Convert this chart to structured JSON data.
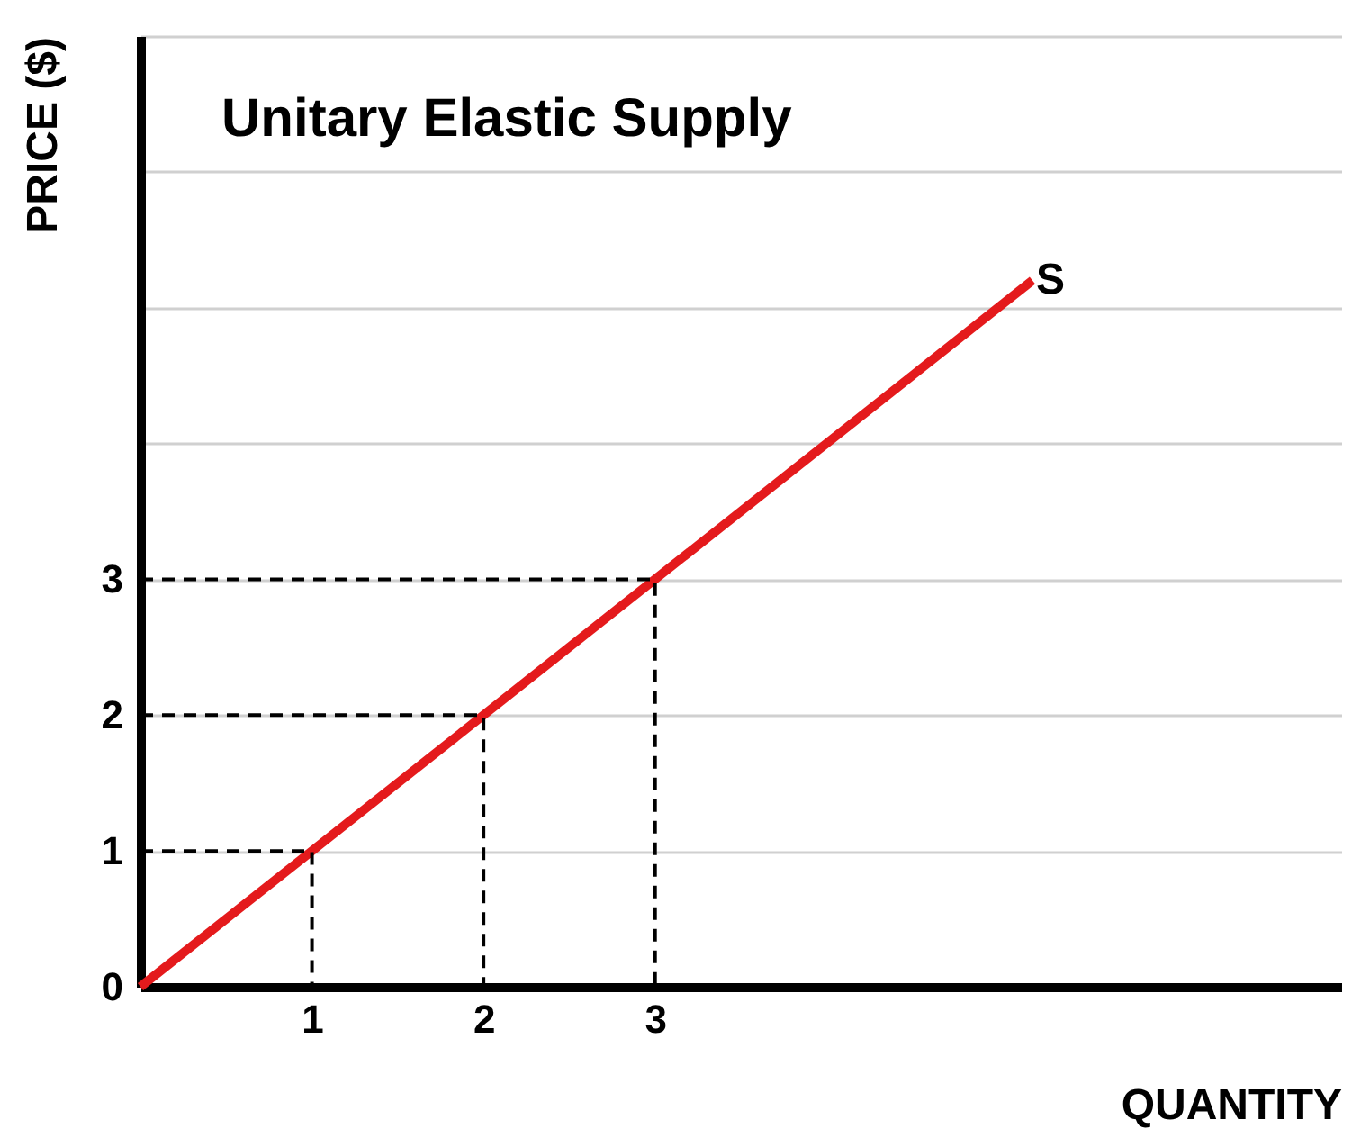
{
  "chart_data": {
    "type": "line",
    "title": "Unitary Elastic Supply",
    "xlabel": "QUANTITY",
    "ylabel": "PRICE ($)",
    "xlim": [
      0,
      7
    ],
    "ylim": [
      0,
      7
    ],
    "xticks": [
      1,
      2,
      3
    ],
    "yticks": [
      0,
      1,
      2,
      3,
      {
        "value": 4,
        "label": null
      },
      {
        "value": 5,
        "label": null
      },
      {
        "value": 6,
        "label": null
      },
      {
        "value": 7,
        "label": null
      }
    ],
    "grid": "y",
    "marker": "none",
    "series": [
      {
        "name": "S",
        "color": "#e41a1c",
        "line_style": "solid",
        "x": [
          0,
          5.2
        ],
        "values": [
          0,
          5.2
        ]
      },
      {
        "color": "#000000",
        "line_style": "dashed",
        "x": [
          0,
          1,
          1
        ],
        "values": [
          1,
          1,
          0
        ]
      },
      {
        "color": "#000000",
        "line_style": "dashed",
        "x": [
          0,
          2,
          2
        ],
        "values": [
          2,
          2,
          0
        ]
      },
      {
        "color": "#000000",
        "line_style": "dashed",
        "x": [
          0,
          3,
          3
        ],
        "values": [
          3,
          3,
          0
        ]
      }
    ]
  }
}
